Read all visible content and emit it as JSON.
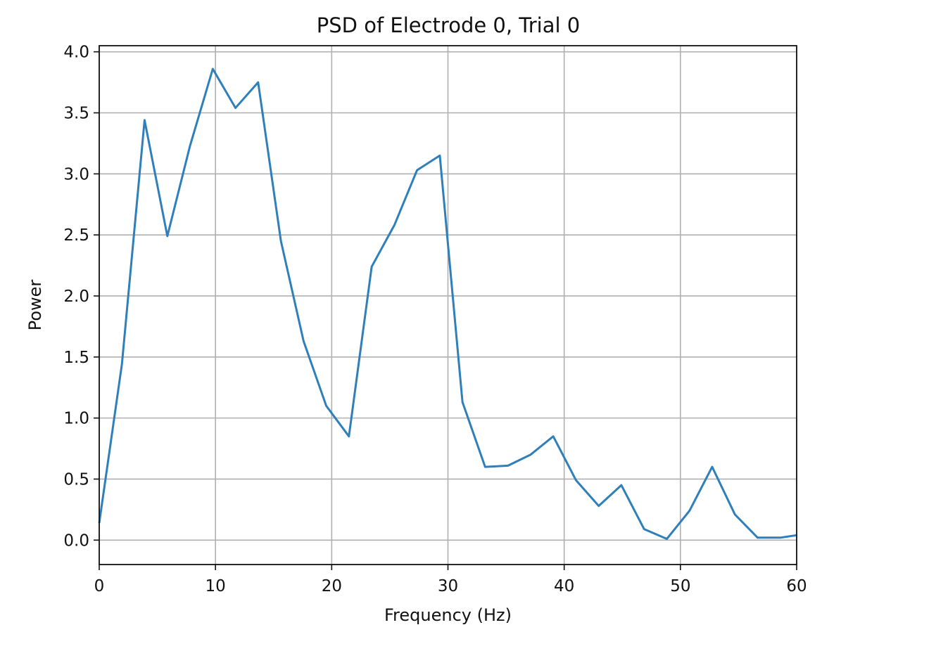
{
  "chart_data": {
    "type": "line",
    "title": "PSD of Electrode 0, Trial 0",
    "xlabel": "Frequency (Hz)",
    "ylabel": "Power",
    "xlim": [
      0,
      60
    ],
    "ylim": [
      -0.2,
      4.05
    ],
    "xticks": [
      0,
      10,
      20,
      30,
      40,
      50,
      60
    ],
    "yticks": [
      0.0,
      0.5,
      1.0,
      1.5,
      2.0,
      2.5,
      3.0,
      3.5,
      4.0
    ],
    "xtick_labels": [
      "0",
      "10",
      "20",
      "30",
      "40",
      "50",
      "60"
    ],
    "ytick_labels": [
      "0.0",
      "0.5",
      "1.0",
      "1.5",
      "2.0",
      "2.5",
      "3.0",
      "3.5",
      "4.0"
    ],
    "grid": true,
    "legend": false,
    "series": [
      {
        "color": "#2e7fba",
        "x": [
          0,
          1.95,
          3.9,
          5.86,
          7.81,
          9.77,
          11.72,
          13.67,
          15.63,
          17.58,
          19.53,
          21.48,
          23.44,
          25.39,
          27.34,
          29.3,
          31.25,
          33.2,
          35.16,
          37.11,
          39.06,
          41.02,
          42.97,
          44.92,
          46.88,
          48.83,
          50.78,
          52.73,
          54.69,
          56.64,
          58.59,
          60
        ],
        "values": [
          0.14,
          1.44,
          3.44,
          2.49,
          3.23,
          3.86,
          3.54,
          3.75,
          2.45,
          1.63,
          1.1,
          0.85,
          2.24,
          2.58,
          3.03,
          3.15,
          1.13,
          0.6,
          0.61,
          0.7,
          0.85,
          0.49,
          0.28,
          0.45,
          0.09,
          0.01,
          0.24,
          0.6,
          0.21,
          0.02,
          0.02,
          0.04
        ]
      }
    ]
  }
}
